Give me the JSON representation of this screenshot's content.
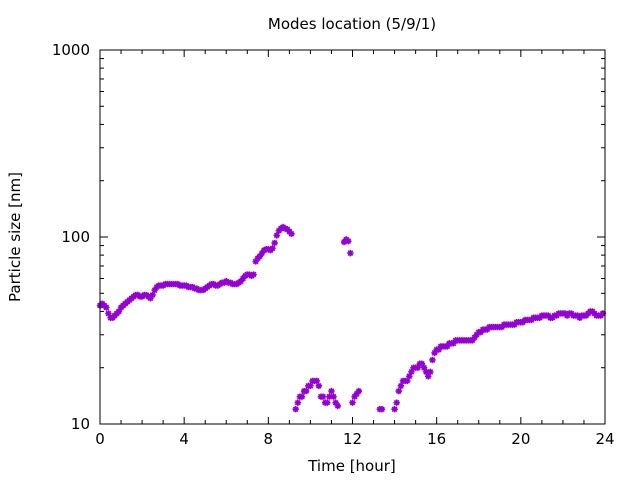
{
  "chart_data": {
    "type": "scatter",
    "title": "Modes location (5/9/1)",
    "xlabel": "Time [hour]",
    "ylabel": "Particle size [nm]",
    "xlim": [
      0,
      24
    ],
    "ylim": [
      10,
      1000
    ],
    "yscale": "log",
    "grid": false,
    "legend": "none",
    "xticks": [
      {
        "value": 0,
        "label": "0"
      },
      {
        "value": 4,
        "label": "4"
      },
      {
        "value": 8,
        "label": "8"
      },
      {
        "value": 12,
        "label": "12"
      },
      {
        "value": 16,
        "label": "16"
      },
      {
        "value": 20,
        "label": "20"
      },
      {
        "value": 24,
        "label": "24"
      }
    ],
    "yticks": [
      {
        "value": 10,
        "label": "10"
      },
      {
        "value": 100,
        "label": "100"
      },
      {
        "value": 1000,
        "label": "1000"
      }
    ],
    "series": [
      {
        "color": "#9400d3",
        "marker": "asterisk",
        "points": [
          [
            0.0,
            43
          ],
          [
            0.1,
            44
          ],
          [
            0.2,
            43
          ],
          [
            0.3,
            42
          ],
          [
            0.4,
            39
          ],
          [
            0.5,
            37
          ],
          [
            0.6,
            37
          ],
          [
            0.7,
            38
          ],
          [
            0.8,
            39
          ],
          [
            0.9,
            40
          ],
          [
            1.0,
            42
          ],
          [
            1.1,
            43
          ],
          [
            1.2,
            44
          ],
          [
            1.3,
            45
          ],
          [
            1.4,
            46
          ],
          [
            1.5,
            47
          ],
          [
            1.6,
            48
          ],
          [
            1.7,
            49
          ],
          [
            1.8,
            49
          ],
          [
            1.9,
            48
          ],
          [
            2.0,
            48
          ],
          [
            2.1,
            49
          ],
          [
            2.2,
            49
          ],
          [
            2.3,
            48
          ],
          [
            2.4,
            47
          ],
          [
            2.5,
            49
          ],
          [
            2.6,
            52
          ],
          [
            2.7,
            54
          ],
          [
            2.8,
            55
          ],
          [
            2.9,
            55
          ],
          [
            3.0,
            55
          ],
          [
            3.1,
            56
          ],
          [
            3.2,
            56
          ],
          [
            3.3,
            56
          ],
          [
            3.4,
            56
          ],
          [
            3.5,
            56
          ],
          [
            3.6,
            56
          ],
          [
            3.7,
            56
          ],
          [
            3.8,
            55
          ],
          [
            3.9,
            55
          ],
          [
            4.0,
            55
          ],
          [
            4.1,
            55
          ],
          [
            4.2,
            54
          ],
          [
            4.3,
            54
          ],
          [
            4.4,
            54
          ],
          [
            4.5,
            53
          ],
          [
            4.6,
            53
          ],
          [
            4.7,
            52
          ],
          [
            4.8,
            52
          ],
          [
            4.9,
            52
          ],
          [
            5.0,
            53
          ],
          [
            5.1,
            54
          ],
          [
            5.2,
            55
          ],
          [
            5.3,
            56
          ],
          [
            5.4,
            56
          ],
          [
            5.5,
            55
          ],
          [
            5.6,
            55
          ],
          [
            5.7,
            56
          ],
          [
            5.8,
            57
          ],
          [
            5.9,
            57
          ],
          [
            6.0,
            58
          ],
          [
            6.1,
            57
          ],
          [
            6.2,
            57
          ],
          [
            6.3,
            56
          ],
          [
            6.4,
            56
          ],
          [
            6.5,
            56
          ],
          [
            6.6,
            57
          ],
          [
            6.7,
            58
          ],
          [
            6.8,
            60
          ],
          [
            6.9,
            62
          ],
          [
            7.0,
            63
          ],
          [
            7.1,
            63
          ],
          [
            7.2,
            62
          ],
          [
            7.3,
            63
          ],
          [
            7.4,
            74
          ],
          [
            7.5,
            77
          ],
          [
            7.6,
            79
          ],
          [
            7.7,
            82
          ],
          [
            7.8,
            85
          ],
          [
            7.9,
            86
          ],
          [
            8.0,
            86
          ],
          [
            8.1,
            85
          ],
          [
            8.2,
            87
          ],
          [
            8.3,
            93
          ],
          [
            8.4,
            102
          ],
          [
            8.5,
            108
          ],
          [
            8.6,
            111
          ],
          [
            8.7,
            113
          ],
          [
            8.8,
            111
          ],
          [
            8.9,
            110
          ],
          [
            9.0,
            107
          ],
          [
            9.1,
            104
          ],
          [
            9.3,
            12
          ],
          [
            9.4,
            13
          ],
          [
            9.5,
            14
          ],
          [
            9.6,
            14
          ],
          [
            9.7,
            15
          ],
          [
            9.8,
            15
          ],
          [
            9.9,
            16
          ],
          [
            10.0,
            16
          ],
          [
            10.1,
            17
          ],
          [
            10.2,
            17
          ],
          [
            10.3,
            17
          ],
          [
            10.4,
            16
          ],
          [
            10.5,
            14
          ],
          [
            10.6,
            14
          ],
          [
            10.7,
            13
          ],
          [
            10.8,
            13
          ],
          [
            10.9,
            14
          ],
          [
            11.0,
            15
          ],
          [
            11.1,
            14
          ],
          [
            11.2,
            13
          ],
          [
            11.3,
            12.5
          ],
          [
            11.6,
            94
          ],
          [
            11.7,
            97
          ],
          [
            11.8,
            95
          ],
          [
            11.9,
            82
          ],
          [
            12.0,
            13
          ],
          [
            12.1,
            14
          ],
          [
            12.2,
            14.5
          ],
          [
            12.3,
            15
          ],
          [
            13.3,
            12
          ],
          [
            13.4,
            12
          ],
          [
            14.0,
            12
          ],
          [
            14.1,
            13
          ],
          [
            14.2,
            15
          ],
          [
            14.3,
            16
          ],
          [
            14.4,
            17
          ],
          [
            14.5,
            17
          ],
          [
            14.6,
            17
          ],
          [
            14.7,
            18
          ],
          [
            14.8,
            19
          ],
          [
            14.9,
            20
          ],
          [
            15.0,
            20
          ],
          [
            15.1,
            20
          ],
          [
            15.2,
            21
          ],
          [
            15.3,
            21
          ],
          [
            15.4,
            20
          ],
          [
            15.5,
            19
          ],
          [
            15.6,
            18
          ],
          [
            15.7,
            19
          ],
          [
            15.8,
            22
          ],
          [
            15.9,
            24
          ],
          [
            16.0,
            25
          ],
          [
            16.1,
            25
          ],
          [
            16.2,
            26
          ],
          [
            16.3,
            26
          ],
          [
            16.4,
            26
          ],
          [
            16.5,
            26
          ],
          [
            16.6,
            27
          ],
          [
            16.7,
            27
          ],
          [
            16.8,
            27
          ],
          [
            16.9,
            28
          ],
          [
            17.0,
            28
          ],
          [
            17.1,
            28
          ],
          [
            17.2,
            28
          ],
          [
            17.3,
            28
          ],
          [
            17.4,
            28
          ],
          [
            17.5,
            28
          ],
          [
            17.6,
            28
          ],
          [
            17.7,
            28
          ],
          [
            17.8,
            29
          ],
          [
            17.9,
            30
          ],
          [
            18.0,
            31
          ],
          [
            18.1,
            31
          ],
          [
            18.2,
            32
          ],
          [
            18.3,
            32
          ],
          [
            18.4,
            32
          ],
          [
            18.5,
            33
          ],
          [
            18.6,
            33
          ],
          [
            18.7,
            33
          ],
          [
            18.8,
            33
          ],
          [
            18.9,
            33
          ],
          [
            19.0,
            33
          ],
          [
            19.1,
            33
          ],
          [
            19.2,
            34
          ],
          [
            19.3,
            34
          ],
          [
            19.4,
            34
          ],
          [
            19.5,
            34
          ],
          [
            19.6,
            34
          ],
          [
            19.7,
            34
          ],
          [
            19.8,
            35
          ],
          [
            19.9,
            35
          ],
          [
            20.0,
            35
          ],
          [
            20.1,
            35
          ],
          [
            20.2,
            36
          ],
          [
            20.3,
            36
          ],
          [
            20.4,
            36
          ],
          [
            20.5,
            36
          ],
          [
            20.6,
            37
          ],
          [
            20.7,
            37
          ],
          [
            20.8,
            37
          ],
          [
            20.9,
            37
          ],
          [
            21.0,
            38
          ],
          [
            21.1,
            38
          ],
          [
            21.2,
            38
          ],
          [
            21.3,
            38
          ],
          [
            21.4,
            37
          ],
          [
            21.5,
            37
          ],
          [
            21.6,
            38
          ],
          [
            21.7,
            38
          ],
          [
            21.8,
            39
          ],
          [
            21.9,
            39
          ],
          [
            22.0,
            39
          ],
          [
            22.1,
            39
          ],
          [
            22.2,
            38
          ],
          [
            22.3,
            39
          ],
          [
            22.4,
            39
          ],
          [
            22.5,
            38
          ],
          [
            22.6,
            38
          ],
          [
            22.7,
            38
          ],
          [
            22.8,
            37
          ],
          [
            22.9,
            38
          ],
          [
            23.0,
            38
          ],
          [
            23.1,
            38
          ],
          [
            23.2,
            39
          ],
          [
            23.3,
            40
          ],
          [
            23.4,
            40
          ],
          [
            23.5,
            39
          ],
          [
            23.6,
            38
          ],
          [
            23.7,
            38
          ],
          [
            23.8,
            38
          ],
          [
            23.9,
            39
          ]
        ]
      }
    ]
  }
}
